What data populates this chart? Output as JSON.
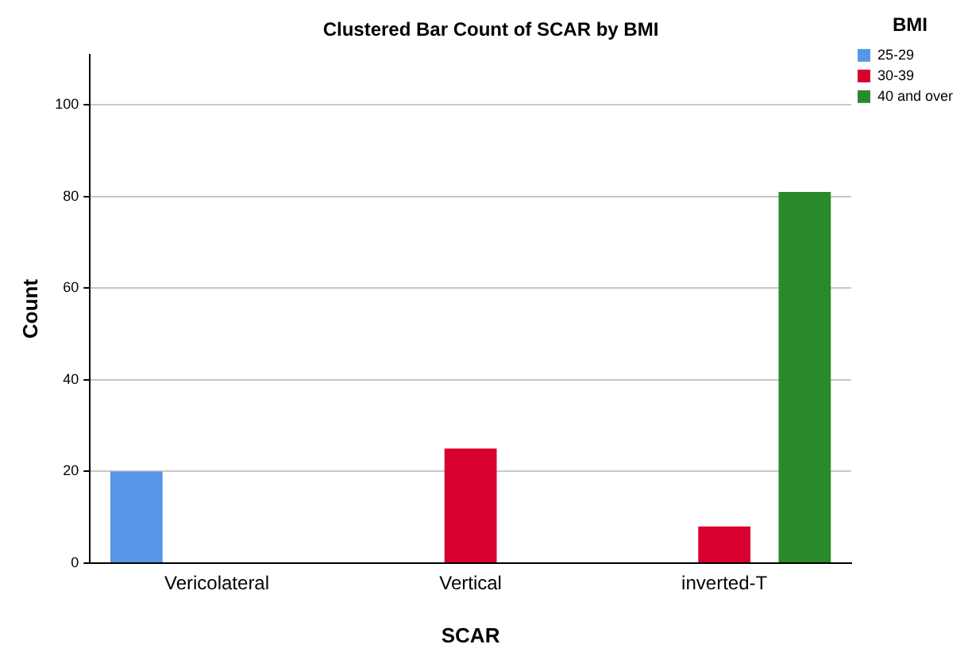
{
  "chart_data": {
    "type": "bar",
    "title": "Clustered Bar Count of SCAR by BMI",
    "xlabel": "SCAR",
    "ylabel": "Count",
    "legend_title": "BMI",
    "categories": [
      "Vericolateral",
      "Vertical",
      "inverted-T"
    ],
    "series": [
      {
        "name": "25-29",
        "color": "#5596e6",
        "values": [
          20,
          null,
          null
        ]
      },
      {
        "name": "30-39",
        "color": "#d8002e",
        "values": [
          null,
          25,
          8
        ]
      },
      {
        "name": "40 and over",
        "color": "#2a8a2a",
        "values": [
          null,
          null,
          81
        ]
      }
    ],
    "ylim": [
      0,
      111
    ],
    "yticks": [
      0,
      20,
      40,
      60,
      80,
      100
    ],
    "grid": "y",
    "legend": "top right"
  }
}
